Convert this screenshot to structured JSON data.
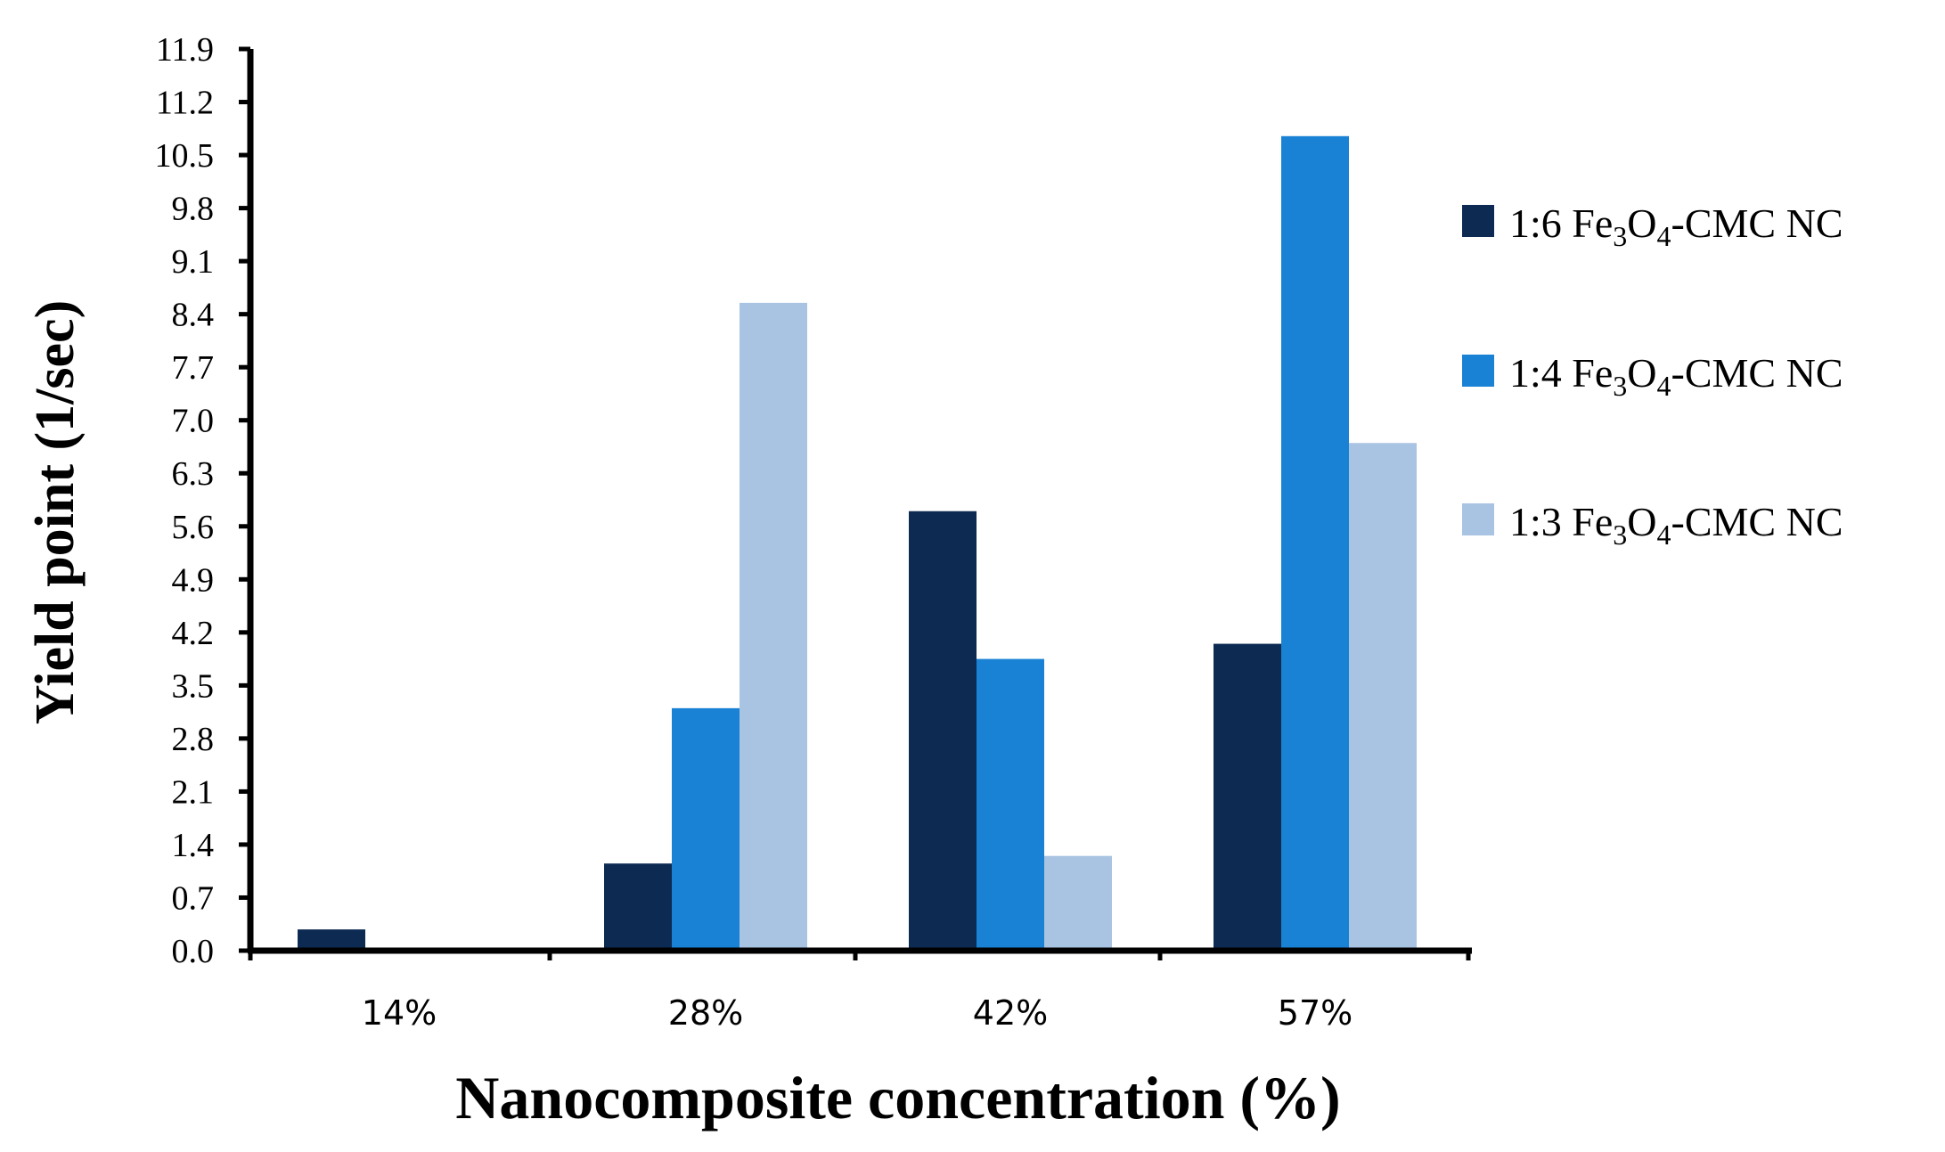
{
  "chart_data": {
    "type": "bar",
    "xlabel": "Nanocomposite concentration (%)",
    "ylabel": "Yield point (1/sec)",
    "categories": [
      "14%",
      "28%",
      "42%",
      "57%"
    ],
    "ylim": [
      0,
      11.9
    ],
    "yticks": [
      "0.0",
      "0.7",
      "1.4",
      "2.1",
      "2.8",
      "3.5",
      "4.2",
      "4.9",
      "5.6",
      "6.3",
      "7.0",
      "7.7",
      "8.4",
      "9.1",
      "9.8",
      "10.5",
      "11.2",
      "11.9"
    ],
    "legend_position": "right",
    "series": [
      {
        "name": "1:6 Fe3O4-CMC NC",
        "label_prefix": "1:6  Fe",
        "label_sub1": "3",
        "label_mid": "O",
        "label_sub2": "4",
        "label_suffix": "-CMC NC",
        "color": "#0d2a52",
        "values": [
          0.28,
          1.15,
          5.8,
          4.05
        ]
      },
      {
        "name": "1:4 Fe3O4-CMC NC",
        "label_prefix": "1:4 Fe",
        "label_sub1": "3",
        "label_mid": "O",
        "label_sub2": "4",
        "label_suffix": "-CMC NC",
        "color": "#1a82d4",
        "values": [
          0,
          3.2,
          3.85,
          10.75
        ]
      },
      {
        "name": "1:3 Fe3O4-CMC NC",
        "label_prefix": "1:3 Fe",
        "label_sub1": "3",
        "label_mid": "O",
        "label_sub2": "4",
        "label_suffix": "-CMC NC",
        "color": "#a9c3e2",
        "values": [
          0,
          8.55,
          1.25,
          6.7
        ]
      }
    ]
  }
}
